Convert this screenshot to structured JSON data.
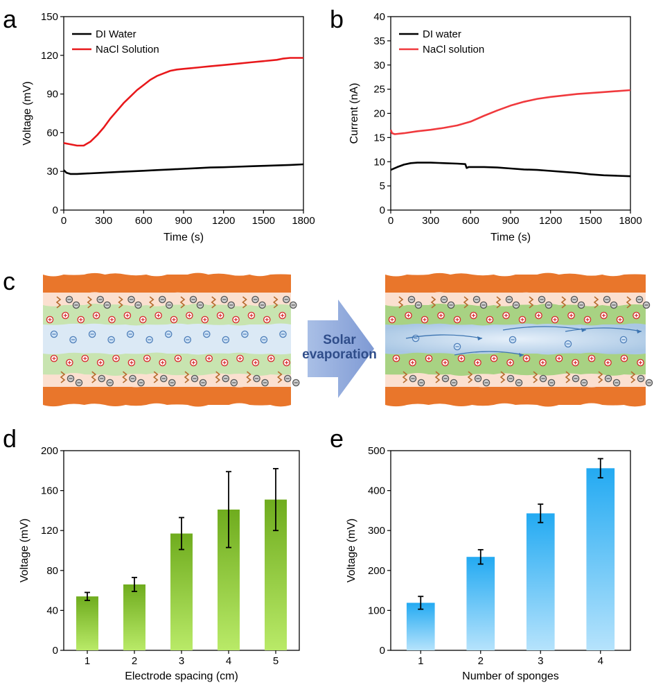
{
  "panels": {
    "a": "a",
    "b": "b",
    "c": "c",
    "d": "d",
    "e": "e"
  },
  "schematic": {
    "arrow_line1": "Solar",
    "arrow_line2": "evaporation",
    "colors": {
      "wall": "#e9762b",
      "wall_inner": "#fbe0d0",
      "green_layer": "#c8e4b0",
      "channel": "#dbe9f5",
      "arrow": "#8fa7d9",
      "cation": "#d62728",
      "anion": "#555555"
    }
  },
  "chart_data": [
    {
      "id": "a",
      "type": "line",
      "xlabel": "Time (s)",
      "ylabel": "Voltage (mV)",
      "xlim": [
        0,
        1800
      ],
      "ylim": [
        0,
        150
      ],
      "xticks": [
        0,
        300,
        600,
        900,
        1200,
        1500,
        1800
      ],
      "yticks": [
        0,
        30,
        60,
        90,
        120,
        150
      ],
      "legend_position": "top-left",
      "grid": false,
      "series": [
        {
          "name": "DI Water",
          "color": "#000000",
          "x": [
            0,
            20,
            50,
            100,
            200,
            300,
            400,
            500,
            600,
            700,
            800,
            900,
            1000,
            1100,
            1200,
            1300,
            1400,
            1500,
            1600,
            1700,
            1800
          ],
          "y": [
            31,
            29,
            28,
            28,
            28.5,
            29,
            29.5,
            30,
            30.5,
            31,
            31.5,
            32,
            32.5,
            33,
            33.2,
            33.6,
            34,
            34.3,
            34.6,
            35,
            35.5
          ]
        },
        {
          "name": "NaCl Solution",
          "color": "#e8181b",
          "x": [
            0,
            50,
            100,
            150,
            200,
            250,
            300,
            350,
            400,
            450,
            500,
            550,
            600,
            650,
            700,
            750,
            800,
            850,
            900,
            950,
            1000,
            1050,
            1100,
            1200,
            1300,
            1400,
            1500,
            1600,
            1650,
            1700,
            1800
          ],
          "y": [
            52,
            51,
            50,
            50,
            53,
            58,
            64,
            71,
            77,
            83,
            88,
            93,
            97,
            101,
            104,
            106,
            108,
            109,
            109.5,
            110,
            110.5,
            111,
            111.5,
            112.5,
            113.5,
            114.5,
            115.5,
            116.5,
            117.5,
            118,
            118
          ]
        }
      ]
    },
    {
      "id": "b",
      "type": "line",
      "xlabel": "Time (s)",
      "ylabel": "Current (nA)",
      "xlim": [
        0,
        1800
      ],
      "ylim": [
        0,
        40
      ],
      "xticks": [
        0,
        300,
        600,
        900,
        1200,
        1500,
        1800
      ],
      "yticks": [
        0,
        5,
        10,
        15,
        20,
        25,
        30,
        35,
        40
      ],
      "legend_position": "top-left",
      "grid": false,
      "series": [
        {
          "name": "DI water",
          "color": "#000000",
          "x": [
            0,
            50,
            100,
            150,
            200,
            300,
            400,
            500,
            560,
            570,
            585,
            600,
            700,
            800,
            900,
            1000,
            1100,
            1200,
            1300,
            1400,
            1500,
            1600,
            1700,
            1800
          ],
          "y": [
            8.3,
            8.9,
            9.4,
            9.7,
            9.8,
            9.8,
            9.7,
            9.6,
            9.5,
            8.7,
            8.9,
            8.9,
            8.9,
            8.8,
            8.6,
            8.4,
            8.3,
            8.1,
            7.9,
            7.7,
            7.4,
            7.2,
            7.1,
            7.0
          ]
        },
        {
          "name": "NaCl solution",
          "color": "#f0393d",
          "x": [
            0,
            10,
            30,
            100,
            200,
            300,
            400,
            500,
            600,
            700,
            800,
            900,
            1000,
            1100,
            1200,
            1300,
            1400,
            1500,
            1600,
            1700,
            1800
          ],
          "y": [
            16.6,
            15.9,
            15.7,
            15.9,
            16.3,
            16.6,
            17.0,
            17.5,
            18.3,
            19.5,
            20.6,
            21.6,
            22.4,
            23.0,
            23.4,
            23.7,
            24.0,
            24.2,
            24.4,
            24.6,
            24.8
          ]
        }
      ]
    },
    {
      "id": "d",
      "type": "bar",
      "xlabel": "Electrode spacing (cm)",
      "ylabel": "Voltage (mV)",
      "ylim": [
        0,
        200
      ],
      "yticks": [
        0,
        40,
        80,
        120,
        160,
        200
      ],
      "categories": [
        "1",
        "2",
        "3",
        "4",
        "5"
      ],
      "values": [
        54,
        66,
        117,
        141,
        151
      ],
      "errors": [
        4,
        7,
        16,
        38,
        31
      ],
      "bar_color_top": "#6fac1e",
      "bar_color_bottom": "#b9ea68"
    },
    {
      "id": "e",
      "type": "bar",
      "xlabel": "Number of sponges",
      "ylabel": "Voltage (mV)",
      "ylim": [
        0,
        500
      ],
      "yticks": [
        0,
        100,
        200,
        300,
        400,
        500
      ],
      "categories": [
        "1",
        "2",
        "3",
        "4"
      ],
      "values": [
        119,
        234,
        343,
        456
      ],
      "errors": [
        16,
        18,
        23,
        24
      ],
      "bar_color_top": "#23aaf2",
      "bar_color_bottom": "#b6e3fc"
    }
  ]
}
